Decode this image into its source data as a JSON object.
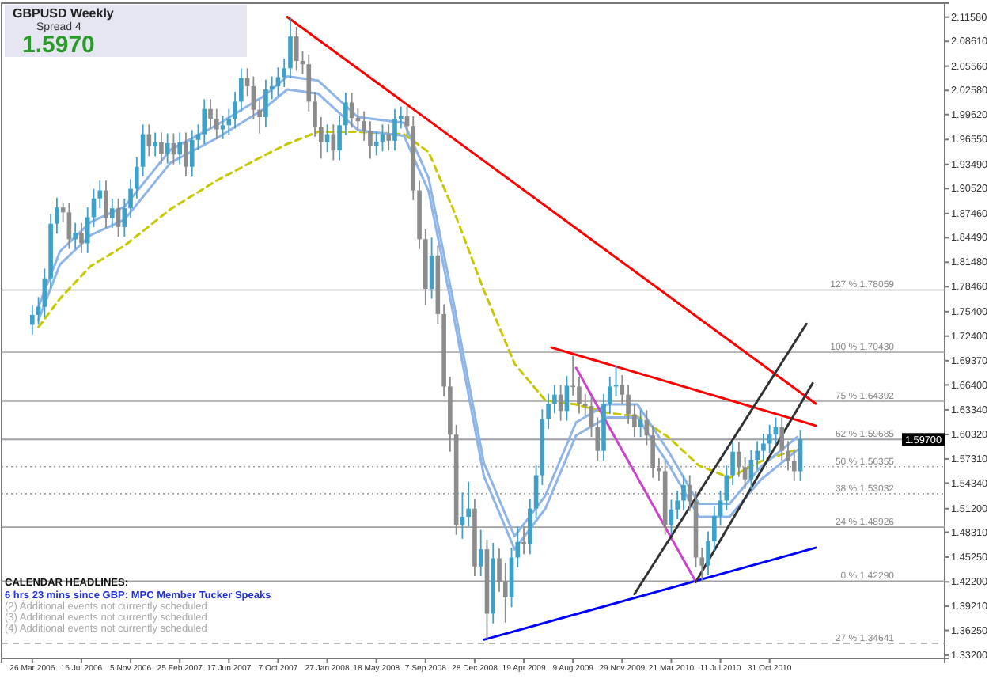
{
  "chart_data": {
    "type": "candlestick",
    "x": [
      "2006-03-26",
      "2006-04-09",
      "2006-04-23",
      "2006-05-07",
      "2006-05-21",
      "2006-06-04",
      "2006-06-18",
      "2006-07-02",
      "2006-07-16",
      "2006-07-30",
      "2006-08-13",
      "2006-08-27",
      "2006-09-10",
      "2006-09-24",
      "2006-10-08",
      "2006-10-22",
      "2006-11-05",
      "2006-11-19",
      "2006-12-03",
      "2006-12-17",
      "2006-12-31",
      "2007-01-14",
      "2007-01-28",
      "2007-02-11",
      "2007-02-25",
      "2007-03-11",
      "2007-03-25",
      "2007-04-08",
      "2007-04-22",
      "2007-05-06",
      "2007-05-20",
      "2007-06-03",
      "2007-06-17",
      "2007-07-01",
      "2007-07-15",
      "2007-07-29",
      "2007-08-12",
      "2007-08-26",
      "2007-09-09",
      "2007-09-23",
      "2007-10-07",
      "2007-10-21",
      "2007-11-04",
      "2007-11-18",
      "2007-12-02",
      "2007-12-16",
      "2007-12-30",
      "2008-01-13",
      "2008-01-27",
      "2008-02-10",
      "2008-02-24",
      "2008-03-09",
      "2008-03-23",
      "2008-04-06",
      "2008-04-20",
      "2008-05-04",
      "2008-05-18",
      "2008-06-01",
      "2008-06-15",
      "2008-06-29",
      "2008-07-13",
      "2008-07-27",
      "2008-08-10",
      "2008-08-24",
      "2008-09-07",
      "2008-09-21",
      "2008-10-05",
      "2008-10-19",
      "2008-11-02",
      "2008-11-16",
      "2008-11-30",
      "2008-12-14",
      "2008-12-28",
      "2009-01-11",
      "2009-01-25",
      "2009-02-08",
      "2009-02-22",
      "2009-03-08",
      "2009-03-22",
      "2009-04-05",
      "2009-04-19",
      "2009-05-03",
      "2009-05-17",
      "2009-05-31",
      "2009-06-14",
      "2009-06-28",
      "2009-07-12",
      "2009-07-26",
      "2009-08-09",
      "2009-08-23",
      "2009-09-06",
      "2009-09-20",
      "2009-10-04",
      "2009-10-18",
      "2009-11-01",
      "2009-11-15",
      "2009-11-29",
      "2009-12-13",
      "2009-12-27",
      "2010-01-10",
      "2010-01-24",
      "2010-02-07",
      "2010-02-21",
      "2010-03-07",
      "2010-03-21",
      "2010-04-04",
      "2010-04-18",
      "2010-05-02",
      "2010-05-16",
      "2010-05-30",
      "2010-06-13",
      "2010-06-27",
      "2010-07-11",
      "2010-07-25",
      "2010-08-08",
      "2010-08-22",
      "2010-09-05",
      "2010-09-19",
      "2010-10-03",
      "2010-10-17",
      "2010-10-31",
      "2010-11-14",
      "2010-11-28",
      "2010-12-12",
      "2010-12-26",
      "2011-01-09"
    ],
    "ohlc": [
      [
        1.738,
        1.762,
        1.726,
        1.75
      ],
      [
        1.75,
        1.772,
        1.738,
        1.76
      ],
      [
        1.76,
        1.807,
        1.748,
        1.795
      ],
      [
        1.795,
        1.874,
        1.783,
        1.862
      ],
      [
        1.862,
        1.894,
        1.85,
        1.882
      ],
      [
        1.882,
        1.888,
        1.864,
        1.876
      ],
      [
        1.876,
        1.888,
        1.831,
        1.843
      ],
      [
        1.843,
        1.863,
        1.831,
        1.851
      ],
      [
        1.851,
        1.863,
        1.826,
        1.838
      ],
      [
        1.838,
        1.882,
        1.826,
        1.87
      ],
      [
        1.87,
        1.905,
        1.858,
        1.893
      ],
      [
        1.893,
        1.915,
        1.881,
        1.903
      ],
      [
        1.903,
        1.915,
        1.857,
        1.869
      ],
      [
        1.869,
        1.893,
        1.857,
        1.881
      ],
      [
        1.881,
        1.893,
        1.846,
        1.858
      ],
      [
        1.858,
        1.893,
        1.846,
        1.881
      ],
      [
        1.881,
        1.917,
        1.869,
        1.905
      ],
      [
        1.905,
        1.944,
        1.893,
        1.932
      ],
      [
        1.932,
        1.984,
        1.92,
        1.972
      ],
      [
        1.972,
        1.984,
        1.945,
        1.957
      ],
      [
        1.957,
        1.974,
        1.945,
        1.962
      ],
      [
        1.962,
        1.974,
        1.936,
        1.948
      ],
      [
        1.948,
        1.973,
        1.936,
        1.961
      ],
      [
        1.961,
        1.973,
        1.935,
        1.947
      ],
      [
        1.947,
        1.974,
        1.935,
        1.962
      ],
      [
        1.962,
        1.974,
        1.92,
        1.932
      ],
      [
        1.932,
        1.977,
        1.92,
        1.965
      ],
      [
        1.965,
        1.984,
        1.953,
        1.972
      ],
      [
        1.972,
        2.015,
        1.96,
        2.003
      ],
      [
        2.003,
        2.015,
        1.979,
        1.991
      ],
      [
        1.991,
        2.003,
        1.966,
        1.978
      ],
      [
        1.978,
        1.995,
        1.966,
        1.983
      ],
      [
        1.983,
        2.003,
        1.971,
        1.991
      ],
      [
        1.991,
        2.024,
        1.979,
        2.012
      ],
      [
        2.012,
        2.053,
        2.0,
        2.041
      ],
      [
        2.041,
        2.053,
        2.019,
        2.031
      ],
      [
        2.031,
        2.043,
        1.99,
        2.002
      ],
      [
        2.002,
        2.014,
        1.973,
        1.993
      ],
      [
        1.993,
        2.039,
        1.981,
        2.027
      ],
      [
        2.027,
        2.043,
        2.015,
        2.031
      ],
      [
        2.031,
        2.054,
        2.019,
        2.042
      ],
      [
        2.042,
        2.065,
        2.03,
        2.053
      ],
      [
        2.053,
        2.115,
        2.041,
        2.092
      ],
      [
        2.092,
        2.104,
        2.05,
        2.062
      ],
      [
        2.062,
        2.074,
        2.046,
        2.058
      ],
      [
        2.058,
        2.07,
        2.0,
        2.012
      ],
      [
        2.012,
        2.024,
        1.969,
        1.981
      ],
      [
        1.981,
        1.993,
        1.942,
        1.962
      ],
      [
        1.962,
        1.984,
        1.95,
        1.972
      ],
      [
        1.972,
        1.984,
        1.94,
        1.952
      ],
      [
        1.952,
        1.995,
        1.94,
        1.983
      ],
      [
        1.983,
        2.023,
        1.971,
        2.011
      ],
      [
        2.011,
        2.023,
        1.98,
        1.992
      ],
      [
        1.992,
        2.004,
        1.976,
        1.988
      ],
      [
        1.988,
        2.0,
        1.964,
        1.976
      ],
      [
        1.976,
        1.988,
        1.942,
        1.958
      ],
      [
        1.958,
        1.975,
        1.946,
        1.963
      ],
      [
        1.963,
        1.984,
        1.951,
        1.972
      ],
      [
        1.972,
        1.984,
        1.952,
        1.964
      ],
      [
        1.964,
        2.003,
        1.952,
        1.991
      ],
      [
        1.991,
        2.006,
        1.979,
        1.994
      ],
      [
        1.994,
        2.006,
        1.97,
        1.982
      ],
      [
        1.982,
        1.994,
        1.891,
        1.903
      ],
      [
        1.903,
        1.915,
        1.831,
        1.843
      ],
      [
        1.843,
        1.855,
        1.762,
        1.782
      ],
      [
        1.782,
        1.845,
        1.77,
        1.823
      ],
      [
        1.823,
        1.835,
        1.739,
        1.751
      ],
      [
        1.751,
        1.763,
        1.65,
        1.662
      ],
      [
        1.662,
        1.674,
        1.582,
        1.603
      ],
      [
        1.603,
        1.615,
        1.48,
        1.492
      ],
      [
        1.492,
        1.532,
        1.475,
        1.502
      ],
      [
        1.502,
        1.545,
        1.49,
        1.512
      ],
      [
        1.512,
        1.524,
        1.429,
        1.441
      ],
      [
        1.441,
        1.486,
        1.429,
        1.462
      ],
      [
        1.462,
        1.474,
        1.352,
        1.383
      ],
      [
        1.383,
        1.47,
        1.371,
        1.451
      ],
      [
        1.451,
        1.463,
        1.41,
        1.422
      ],
      [
        1.422,
        1.445,
        1.372,
        1.403
      ],
      [
        1.403,
        1.464,
        1.391,
        1.452
      ],
      [
        1.452,
        1.49,
        1.44,
        1.471
      ],
      [
        1.471,
        1.49,
        1.456,
        1.468
      ],
      [
        1.468,
        1.524,
        1.456,
        1.512
      ],
      [
        1.512,
        1.565,
        1.5,
        1.553
      ],
      [
        1.553,
        1.634,
        1.541,
        1.622
      ],
      [
        1.622,
        1.653,
        1.61,
        1.641
      ],
      [
        1.641,
        1.664,
        1.629,
        1.652
      ],
      [
        1.652,
        1.664,
        1.62,
        1.632
      ],
      [
        1.632,
        1.675,
        1.62,
        1.663
      ],
      [
        1.663,
        1.7,
        1.651,
        1.662
      ],
      [
        1.662,
        1.674,
        1.629,
        1.641
      ],
      [
        1.641,
        1.653,
        1.626,
        1.638
      ],
      [
        1.638,
        1.65,
        1.6,
        1.612
      ],
      [
        1.612,
        1.624,
        1.571,
        1.583
      ],
      [
        1.583,
        1.653,
        1.571,
        1.641
      ],
      [
        1.641,
        1.674,
        1.629,
        1.662
      ],
      [
        1.662,
        1.688,
        1.65,
        1.664
      ],
      [
        1.664,
        1.676,
        1.64,
        1.652
      ],
      [
        1.652,
        1.664,
        1.616,
        1.628
      ],
      [
        1.628,
        1.64,
        1.6,
        1.612
      ],
      [
        1.612,
        1.633,
        1.6,
        1.621
      ],
      [
        1.621,
        1.633,
        1.59,
        1.602
      ],
      [
        1.602,
        1.614,
        1.55,
        1.562
      ],
      [
        1.562,
        1.574,
        1.546,
        1.558
      ],
      [
        1.558,
        1.57,
        1.48,
        1.492
      ],
      [
        1.492,
        1.523,
        1.48,
        1.511
      ],
      [
        1.511,
        1.534,
        1.499,
        1.522
      ],
      [
        1.522,
        1.553,
        1.51,
        1.541
      ],
      [
        1.541,
        1.553,
        1.509,
        1.521
      ],
      [
        1.521,
        1.533,
        1.44,
        1.452
      ],
      [
        1.452,
        1.464,
        1.423,
        1.442
      ],
      [
        1.442,
        1.484,
        1.43,
        1.472
      ],
      [
        1.472,
        1.515,
        1.46,
        1.503
      ],
      [
        1.503,
        1.534,
        1.491,
        1.522
      ],
      [
        1.522,
        1.565,
        1.51,
        1.553
      ],
      [
        1.553,
        1.594,
        1.541,
        1.582
      ],
      [
        1.582,
        1.594,
        1.551,
        1.563
      ],
      [
        1.563,
        1.575,
        1.536,
        1.548
      ],
      [
        1.548,
        1.584,
        1.536,
        1.572
      ],
      [
        1.572,
        1.595,
        1.56,
        1.583
      ],
      [
        1.583,
        1.604,
        1.571,
        1.592
      ],
      [
        1.592,
        1.615,
        1.58,
        1.603
      ],
      [
        1.603,
        1.624,
        1.591,
        1.612
      ],
      [
        1.612,
        1.624,
        1.571,
        1.583
      ],
      [
        1.583,
        1.595,
        1.559,
        1.571
      ],
      [
        1.571,
        1.583,
        1.546,
        1.558
      ],
      [
        1.558,
        1.609,
        1.546,
        1.597
      ]
    ],
    "colors": [
      "#3fa0c8",
      "#3fa0c8",
      "#3fa0c8",
      "#3fa0c8",
      "#3fa0c8",
      "#8c8c8c",
      "#8c8c8c",
      "#3fa0c8",
      "#8c8c8c",
      "#3fa0c8",
      "#3fa0c8",
      "#3fa0c8",
      "#8c8c8c",
      "#3fa0c8",
      "#8c8c8c",
      "#3fa0c8",
      "#3fa0c8",
      "#3fa0c8",
      "#3fa0c8",
      "#8c8c8c",
      "#3fa0c8",
      "#8c8c8c",
      "#3fa0c8",
      "#8c8c8c",
      "#3fa0c8",
      "#8c8c8c",
      "#3fa0c8",
      "#3fa0c8",
      "#3fa0c8",
      "#8c8c8c",
      "#8c8c8c",
      "#3fa0c8",
      "#3fa0c8",
      "#3fa0c8",
      "#3fa0c8",
      "#8c8c8c",
      "#8c8c8c",
      "#8c8c8c",
      "#3fa0c8",
      "#3fa0c8",
      "#3fa0c8",
      "#3fa0c8",
      "#3fa0c8",
      "#8c8c8c",
      "#8c8c8c",
      "#8c8c8c",
      "#8c8c8c",
      "#8c8c8c",
      "#3fa0c8",
      "#8c8c8c",
      "#3fa0c8",
      "#3fa0c8",
      "#8c8c8c",
      "#8c8c8c",
      "#8c8c8c",
      "#8c8c8c",
      "#3fa0c8",
      "#3fa0c8",
      "#8c8c8c",
      "#3fa0c8",
      "#3fa0c8",
      "#8c8c8c",
      "#8c8c8c",
      "#8c8c8c",
      "#8c8c8c",
      "#3fa0c8",
      "#8c8c8c",
      "#8c8c8c",
      "#8c8c8c",
      "#8c8c8c",
      "#3fa0c8",
      "#3fa0c8",
      "#8c8c8c",
      "#3fa0c8",
      "#8c8c8c",
      "#3fa0c8",
      "#8c8c8c",
      "#8c8c8c",
      "#3fa0c8",
      "#3fa0c8",
      "#8c8c8c",
      "#3fa0c8",
      "#3fa0c8",
      "#3fa0c8",
      "#3fa0c8",
      "#3fa0c8",
      "#8c8c8c",
      "#3fa0c8",
      "#8c8c8c",
      "#8c8c8c",
      "#8c8c8c",
      "#8c8c8c",
      "#8c8c8c",
      "#3fa0c8",
      "#3fa0c8",
      "#3fa0c8",
      "#8c8c8c",
      "#8c8c8c",
      "#8c8c8c",
      "#3fa0c8",
      "#8c8c8c",
      "#8c8c8c",
      "#8c8c8c",
      "#8c8c8c",
      "#3fa0c8",
      "#3fa0c8",
      "#3fa0c8",
      "#8c8c8c",
      "#8c8c8c",
      "#8c8c8c",
      "#3fa0c8",
      "#3fa0c8",
      "#3fa0c8",
      "#3fa0c8",
      "#3fa0c8",
      "#8c8c8c",
      "#8c8c8c",
      "#3fa0c8",
      "#3fa0c8",
      "#3fa0c8",
      "#3fa0c8",
      "#3fa0c8",
      "#8c8c8c",
      "#8c8c8c",
      "#8c8c8c",
      "#3fa0c8"
    ],
    "series": [
      {
        "type": "line",
        "color": "#c8c800",
        "line_style": "dashed",
        "x": [
          "2006-04-09",
          "2006-05-28",
          "2006-08-06",
          "2006-10-22",
          "2007-02-04",
          "2007-05-20",
          "2007-09-02",
          "2007-10-28",
          "2008-01-06",
          "2008-04-06",
          "2008-07-20",
          "2008-09-14",
          "2008-11-09",
          "2009-01-18",
          "2009-03-29",
          "2009-06-07",
          "2009-08-16",
          "2009-10-25",
          "2010-01-03",
          "2010-03-14",
          "2010-05-23",
          "2010-08-01",
          "2010-10-10",
          "2011-01-02"
        ],
        "values": [
          1.735,
          1.77,
          1.81,
          1.835,
          1.88,
          1.915,
          1.945,
          1.96,
          1.975,
          1.975,
          1.972,
          1.95,
          1.88,
          1.78,
          1.69,
          1.645,
          1.64,
          1.63,
          1.625,
          1.6,
          1.565,
          1.55,
          1.57,
          1.585
        ]
      },
      {
        "type": "line",
        "color": "#8fb4e8",
        "line_style": "solid",
        "x": [
          "2006-04-09",
          "2006-05-28",
          "2006-08-06",
          "2006-10-22",
          "2007-02-04",
          "2007-05-20",
          "2007-09-02",
          "2007-10-28",
          "2008-01-06",
          "2008-04-06",
          "2008-07-20",
          "2008-09-14",
          "2008-11-09",
          "2009-01-18",
          "2009-03-29",
          "2009-06-07",
          "2009-08-16",
          "2009-10-25",
          "2010-01-03",
          "2010-03-14",
          "2010-05-23",
          "2010-08-01",
          "2010-10-10",
          "2011-01-02"
        ],
        "values": [
          1.76,
          1.828,
          1.864,
          1.883,
          1.953,
          1.983,
          2.018,
          2.043,
          2.038,
          1.993,
          1.986,
          1.918,
          1.768,
          1.568,
          1.478,
          1.528,
          1.618,
          1.64,
          1.64,
          1.583,
          1.518,
          1.518,
          1.563,
          1.6
        ]
      },
      {
        "type": "line",
        "color": "#8fb4e8",
        "line_style": "solid",
        "x": [
          "2006-04-09",
          "2006-05-28",
          "2006-08-06",
          "2006-10-22",
          "2007-02-04",
          "2007-05-20",
          "2007-09-02",
          "2007-10-28",
          "2008-01-06",
          "2008-04-06",
          "2008-07-20",
          "2008-09-14",
          "2008-11-09",
          "2009-01-18",
          "2009-03-29",
          "2009-06-07",
          "2009-08-16",
          "2009-10-25",
          "2010-01-03",
          "2010-03-14",
          "2010-05-23",
          "2010-08-01",
          "2010-10-10",
          "2011-01-02"
        ],
        "values": [
          1.744,
          1.812,
          1.848,
          1.867,
          1.937,
          1.967,
          2.002,
          2.027,
          2.022,
          1.977,
          1.97,
          1.902,
          1.752,
          1.552,
          1.462,
          1.512,
          1.602,
          1.624,
          1.624,
          1.567,
          1.502,
          1.502,
          1.547,
          1.584
        ]
      },
      {
        "type": "line",
        "color": "#ff0000",
        "line_style": "solid",
        "x": [
          "2007-10-28",
          "2011-02-13"
        ],
        "values": [
          2.116,
          1.641
        ]
      },
      {
        "type": "line",
        "color": "#ff0000",
        "line_style": "solid",
        "x": [
          "2009-06-21",
          "2011-02-13"
        ],
        "values": [
          1.71,
          1.614
        ]
      },
      {
        "type": "line",
        "color": "#0000ff",
        "line_style": "solid",
        "x": [
          "2009-01-18",
          "2011-02-13"
        ],
        "values": [
          1.351,
          1.464
        ]
      },
      {
        "type": "line",
        "color": "#cc44cc",
        "line_style": "solid",
        "x": [
          "2009-08-16",
          "2010-05-16"
        ],
        "values": [
          1.685,
          1.422
        ]
      },
      {
        "type": "line",
        "color": "#333333",
        "line_style": "solid",
        "x": [
          "2009-12-27",
          "2011-01-23"
        ],
        "values": [
          1.407,
          1.739
        ]
      },
      {
        "type": "line",
        "color": "#333333",
        "line_style": "solid",
        "x": [
          "2010-05-16",
          "2011-02-06"
        ],
        "values": [
          1.422,
          1.666
        ]
      }
    ],
    "xlim": [
      "2006-01-15",
      "2011-12-04"
    ],
    "xticks": [
      {
        "value": "2006-03-26",
        "label": "26 Mar 2006"
      },
      {
        "value": "2006-07-16",
        "label": "16 Jul 2006"
      },
      {
        "value": "2006-11-05",
        "label": "5 Nov 2006"
      },
      {
        "value": "2007-02-25",
        "label": "25 Feb 2007"
      },
      {
        "value": "2007-06-17",
        "label": "17 Jun 2007"
      },
      {
        "value": "2007-10-07",
        "label": "7 Oct 2007"
      },
      {
        "value": "2008-01-27",
        "label": "27 Jan 2008"
      },
      {
        "value": "2008-05-18",
        "label": "18 May 2008"
      },
      {
        "value": "2008-09-07",
        "label": "7 Sep 2008"
      },
      {
        "value": "2008-12-28",
        "label": "28 Dec 2008"
      },
      {
        "value": "2009-04-19",
        "label": "19 Apr 2009"
      },
      {
        "value": "2009-08-09",
        "label": "9 Aug 2009"
      },
      {
        "value": "2009-11-29",
        "label": "29 Nov 2009"
      },
      {
        "value": "2010-03-21",
        "label": "21 Mar 2010"
      },
      {
        "value": "2010-07-11",
        "label": "11 Jul 2010"
      },
      {
        "value": "2010-10-31",
        "label": "31 Oct 2010"
      }
    ],
    "ylim": [
      1.328,
      2.133
    ],
    "yticks": [
      {
        "value": 2.1158,
        "label": "2.11580"
      },
      {
        "value": 2.0861,
        "label": "2.08610"
      },
      {
        "value": 2.0556,
        "label": "2.05560"
      },
      {
        "value": 2.0258,
        "label": "2.02580"
      },
      {
        "value": 1.9962,
        "label": "1.99620"
      },
      {
        "value": 1.9655,
        "label": "1.96550"
      },
      {
        "value": 1.9349,
        "label": "1.93490"
      },
      {
        "value": 1.9052,
        "label": "1.90520"
      },
      {
        "value": 1.8746,
        "label": "1.87460"
      },
      {
        "value": 1.8449,
        "label": "1.84490"
      },
      {
        "value": 1.8148,
        "label": "1.81480"
      },
      {
        "value": 1.7846,
        "label": "1.78460"
      },
      {
        "value": 1.754,
        "label": "1.75400"
      },
      {
        "value": 1.724,
        "label": "1.72400"
      },
      {
        "value": 1.6937,
        "label": "1.69370"
      },
      {
        "value": 1.664,
        "label": "1.66400"
      },
      {
        "value": 1.6334,
        "label": "1.63340"
      },
      {
        "value": 1.6032,
        "label": "1.60320"
      },
      {
        "value": 1.5731,
        "label": "1.57310"
      },
      {
        "value": 1.5434,
        "label": "1.54340"
      },
      {
        "value": 1.512,
        "label": "1.51200"
      },
      {
        "value": 1.4831,
        "label": "1.48310"
      },
      {
        "value": 1.4525,
        "label": "1.45250"
      },
      {
        "value": 1.422,
        "label": "1.42200"
      },
      {
        "value": 1.3921,
        "label": "1.39210"
      },
      {
        "value": 1.3625,
        "label": "1.36250"
      },
      {
        "value": 1.332,
        "label": "1.33200"
      }
    ],
    "ref_lines": [
      {
        "axis": "y",
        "value": 1.597,
        "label": "1.59700",
        "color": "#7080a8",
        "line_style": "solid"
      },
      {
        "axis": "y",
        "value": 1.78059,
        "label": "127 %  1.78059",
        "color": "#a0a0a0",
        "line_style": "solid"
      },
      {
        "axis": "y",
        "value": 1.7043,
        "label": "100 %  1.70430",
        "color": "#a0a0a0",
        "line_style": "solid"
      },
      {
        "axis": "y",
        "value": 1.64392,
        "label": "75 %  1.64392",
        "color": "#a0a0a0",
        "line_style": "solid"
      },
      {
        "axis": "y",
        "value": 1.59685,
        "label": "62 %  1.59685",
        "color": "#a0a0a0",
        "line_style": "solid"
      },
      {
        "axis": "y",
        "value": 1.56355,
        "label": "50 %  1.56355",
        "color": "#a0a0a0",
        "line_style": "dotted"
      },
      {
        "axis": "y",
        "value": 1.53032,
        "label": "38 %  1.53032",
        "color": "#a0a0a0",
        "line_style": "dotted"
      },
      {
        "axis": "y",
        "value": 1.48926,
        "label": "24 %  1.48926",
        "color": "#a0a0a0",
        "line_style": "solid"
      },
      {
        "axis": "y",
        "value": 1.4229,
        "label": "0 %  1.42290",
        "color": "#a0a0a0",
        "line_style": "solid"
      },
      {
        "axis": "y",
        "value": 1.34641,
        "label": "27 %  1.34641",
        "color": "#a0a0a0",
        "line_style": "dashed"
      }
    ],
    "annotations": [
      "GBPUSD   Weekly",
      "Spread  4",
      "1.5970",
      "CALENDAR HEADLINES:",
      "6 hrs 23 mins since GBP: MPC Member Tucker Speaks",
      "(2)  Additional events not currently scheduled",
      "(3)  Additional events not currently scheduled",
      "(4)  Additional events not currently scheduled"
    ],
    "marker": "none"
  }
}
